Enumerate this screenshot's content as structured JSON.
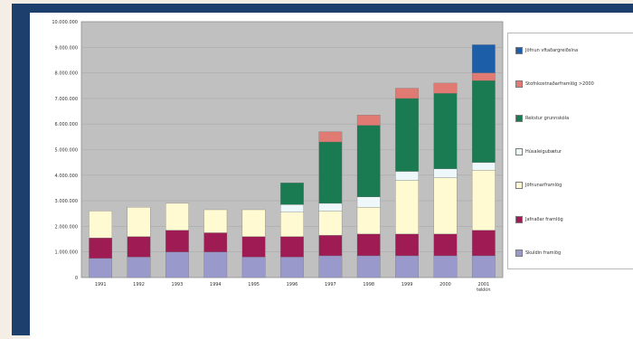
{
  "colors": {
    "frame": "#1d3f6e",
    "plot_bg": "#c0c0c0",
    "gridline": "#a9a9a9"
  },
  "chart_data": {
    "type": "bar",
    "stacked": true,
    "title": "",
    "xlabel": "",
    "ylabel": "",
    "ylim": [
      0,
      10000000
    ],
    "y_ticks": [
      "0",
      "1.000.000",
      "2.000.000",
      "3.000.000",
      "4.000.000",
      "5.000.000",
      "6.000.000",
      "7.000.000",
      "8.000.000",
      "9.000.000",
      "10.000.000"
    ],
    "categories": [
      "1991",
      "1992",
      "1993",
      "1994",
      "1995",
      "1996",
      "1997",
      "1998",
      "1999",
      "2000",
      "2001 tekkin"
    ],
    "grid": true,
    "legend_position": "right",
    "series": [
      {
        "name": "Skuldin framlög",
        "color": "#9999cc",
        "values": [
          750000,
          800000,
          1000000,
          1000000,
          800000,
          800000,
          850000,
          850000,
          850000,
          850000,
          850000
        ]
      },
      {
        "name": "Jafnaðar framlög",
        "color": "#9e1b54",
        "values": [
          800000,
          800000,
          850000,
          750000,
          800000,
          800000,
          800000,
          850000,
          850000,
          850000,
          1000000
        ]
      },
      {
        "name": "Jöfnunarframlög",
        "color": "#fffad2",
        "values": [
          1050000,
          1150000,
          1050000,
          900000,
          1050000,
          950000,
          950000,
          1050000,
          2100000,
          2200000,
          2350000
        ]
      },
      {
        "name": "Húsaleigubætur",
        "color": "#eef8fa",
        "values": [
          0,
          0,
          0,
          0,
          0,
          300000,
          300000,
          400000,
          350000,
          350000,
          300000
        ]
      },
      {
        "name": "Rekstur grunnskóla",
        "color": "#1a7a52",
        "values": [
          0,
          0,
          0,
          0,
          0,
          850000,
          2400000,
          2800000,
          2850000,
          2950000,
          3200000
        ]
      },
      {
        "name": "Stofnkostnaðarframlög >2000",
        "color": "#e07a73",
        "values": [
          0,
          0,
          0,
          0,
          0,
          0,
          400000,
          400000,
          400000,
          400000,
          300000
        ]
      },
      {
        "name": "Jöfnun vftaðargreiðslna",
        "color": "#1c5fa8",
        "values": [
          0,
          0,
          0,
          0,
          0,
          0,
          0,
          0,
          0,
          0,
          1100000
        ]
      }
    ],
    "legend_order": [
      6,
      5,
      4,
      3,
      2,
      1,
      0
    ]
  }
}
